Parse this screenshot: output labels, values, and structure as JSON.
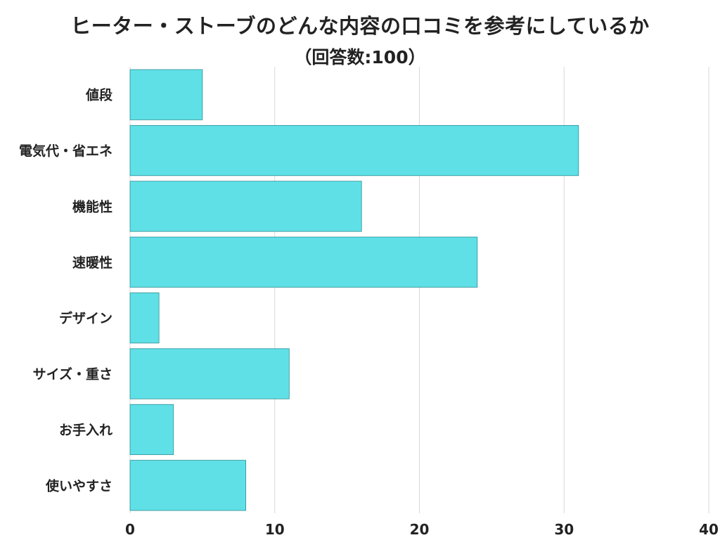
{
  "chart_data": {
    "type": "bar",
    "orientation": "horizontal",
    "title": "ヒーター・ストーブのどんな内容の口コミを参考にしているか",
    "subtitle": "（回答数:100）",
    "categories": [
      "値段",
      "電気代・省エネ",
      "機能性",
      "速暖性",
      "デザイン",
      "サイズ・重さ",
      "お手入れ",
      "使いやすさ"
    ],
    "values": [
      5,
      31,
      16,
      24,
      2,
      11,
      3,
      8
    ],
    "xlim": [
      0,
      40
    ],
    "x_ticks": [
      "0",
      "10",
      "20",
      "30",
      "40"
    ],
    "grid": true,
    "bar_color": "#5ee0e6",
    "grid_color": "#d9d9d9",
    "text_color": "#222222"
  }
}
